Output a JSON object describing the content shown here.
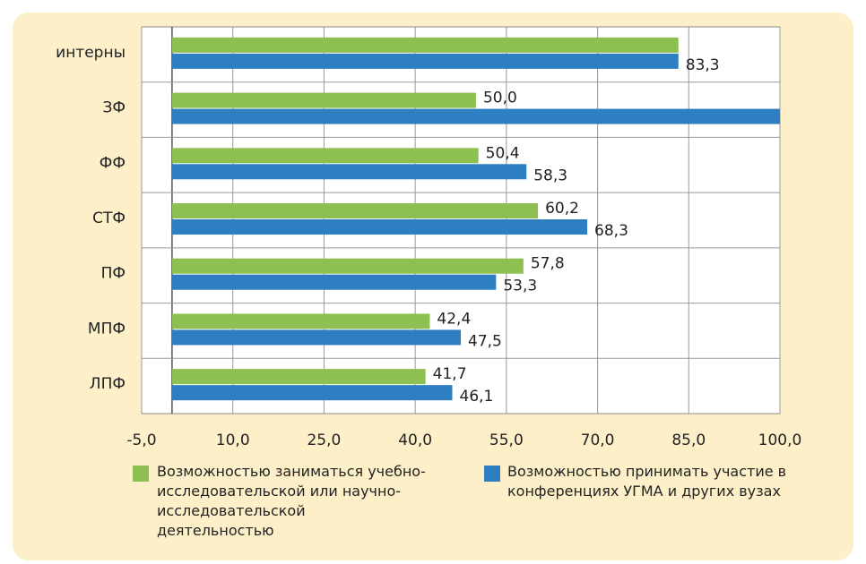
{
  "chart_data": {
    "type": "hbar",
    "categories": [
      "интерны",
      "ЗФ",
      "ФФ",
      "СТФ",
      "ПФ",
      "МПФ",
      "ЛПФ"
    ],
    "series": [
      {
        "name": "Возможностью заниматься учебно-исследовательской или научно-исследовательской деятельностью",
        "color": "#8dc050",
        "values": [
          83.3,
          50.0,
          50.4,
          60.2,
          57.8,
          42.4,
          41.7
        ],
        "value_labels": [
          null,
          "50,0",
          "50,4",
          "60,2",
          "57,8",
          "42,4",
          "41,7"
        ]
      },
      {
        "name": "Возможностью принимать участие в конференциях УГМА и других вузах",
        "color": "#2e7fc2",
        "values": [
          83.3,
          100,
          58.3,
          68.3,
          53.3,
          47.5,
          46.1
        ],
        "value_labels": [
          "83,3",
          null,
          "58,3",
          "68,3",
          "53,3",
          "47,5",
          "46,1"
        ]
      }
    ],
    "xlim": [
      -5,
      100
    ],
    "xticks": [
      {
        "value": -5,
        "label": "-5,0"
      },
      {
        "value": 10,
        "label": "10,0"
      },
      {
        "value": 25,
        "label": "25,0"
      },
      {
        "value": 40,
        "label": "40,0"
      },
      {
        "value": 55,
        "label": "55,0"
      },
      {
        "value": 70,
        "label": "70,0"
      },
      {
        "value": 85,
        "label": "85,0"
      },
      {
        "value": 100,
        "label": "100,0"
      }
    ],
    "grid": true
  }
}
